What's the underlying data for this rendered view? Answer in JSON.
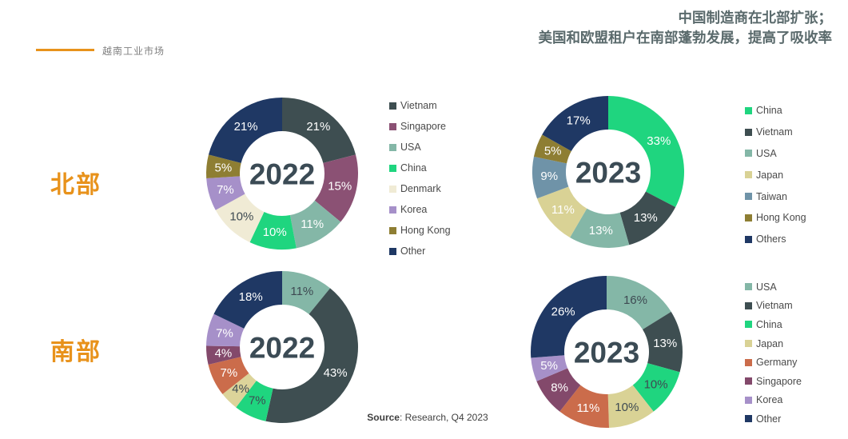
{
  "header": {
    "tagline": "越南工业市场",
    "title_lines": [
      "中国制造商在北部扩张；",
      "美国和欧盟租户在南部蓬勃发展，提高了吸收率"
    ]
  },
  "regions": {
    "north": "北部",
    "south": "南部"
  },
  "source": {
    "bold": "Source",
    "rest": ": Research, Q4 2023"
  },
  "palette": {
    "accent_orange": "#E8921B",
    "title_gray": "#5A6A6C",
    "year_text": "#3B4B55",
    "legend_text": "#4A4A4A",
    "dark_label": "#3E4A52"
  },
  "chart_data": [
    {
      "id": "north-2022",
      "type": "pie",
      "subtype": "donut",
      "region": "北部",
      "center_label": "2022",
      "labels": [
        "Vietnam",
        "Singapore",
        "USA",
        "China",
        "Denmark",
        "Korea",
        "Hong Kong",
        "Other"
      ],
      "values": [
        21,
        15,
        11,
        10,
        10,
        7,
        5,
        21
      ],
      "colors": [
        "#3E4E51",
        "#8B5174",
        "#84B7A7",
        "#1FD57F",
        "#F0EBD5",
        "#A690C9",
        "#8E7E33",
        "#1F3864"
      ],
      "label_colors": [
        "#FFFFFF",
        "#FFFFFF",
        "#FFFFFF",
        "#FFFFFF",
        "#3E4A52",
        "#FFFFFF",
        "#FFFFFF",
        "#FFFFFF"
      ]
    },
    {
      "id": "north-2023",
      "type": "pie",
      "subtype": "donut",
      "region": "北部",
      "center_label": "2023",
      "labels": [
        "China",
        "Vietnam",
        "USA",
        "Japan",
        "Taiwan",
        "Hong Kong",
        "Others"
      ],
      "values": [
        33,
        13,
        13,
        11,
        9,
        5,
        17
      ],
      "colors": [
        "#1FD57F",
        "#3E4E51",
        "#84B7A7",
        "#D9D295",
        "#6F93A8",
        "#8E7E33",
        "#1F3864"
      ],
      "label_colors": [
        "#FFFFFF",
        "#FFFFFF",
        "#FFFFFF",
        "#FFFFFF",
        "#FFFFFF",
        "#FFFFFF",
        "#FFFFFF"
      ]
    },
    {
      "id": "south-2022",
      "type": "pie",
      "subtype": "donut",
      "region": "南部",
      "center_label": "2022",
      "labels": [
        "USA",
        "Vietnam",
        "China",
        "Japan",
        "Germany",
        "Singapore",
        "Korea",
        "Other"
      ],
      "values": [
        11,
        43,
        7,
        4,
        7,
        4,
        7,
        18
      ],
      "colors": [
        "#84B7A7",
        "#3E4E51",
        "#1FD57F",
        "#DCD49A",
        "#CB6C4B",
        "#83496B",
        "#A690C9",
        "#1F3864"
      ],
      "label_colors": [
        "#3E4A52",
        "#FFFFFF",
        "#3E4A52",
        "#3E4A52",
        "#FFFFFF",
        "#FFFFFF",
        "#FFFFFF",
        "#FFFFFF"
      ]
    },
    {
      "id": "south-2023",
      "type": "pie",
      "subtype": "donut",
      "region": "南部",
      "center_label": "2023",
      "labels": [
        "USA",
        "Vietnam",
        "China",
        "Japan",
        "Germany",
        "Singapore",
        "Korea",
        "Other"
      ],
      "values": [
        16,
        13,
        10,
        10,
        11,
        8,
        5,
        26
      ],
      "colors": [
        "#84B7A7",
        "#3E4E51",
        "#1FD57F",
        "#D9D295",
        "#CB6C4B",
        "#83496B",
        "#A690C9",
        "#1F3864"
      ],
      "label_colors": [
        "#3E4A52",
        "#FFFFFF",
        "#3E4A52",
        "#3E4A52",
        "#FFFFFF",
        "#FFFFFF",
        "#FFFFFF",
        "#FFFFFF"
      ]
    }
  ]
}
